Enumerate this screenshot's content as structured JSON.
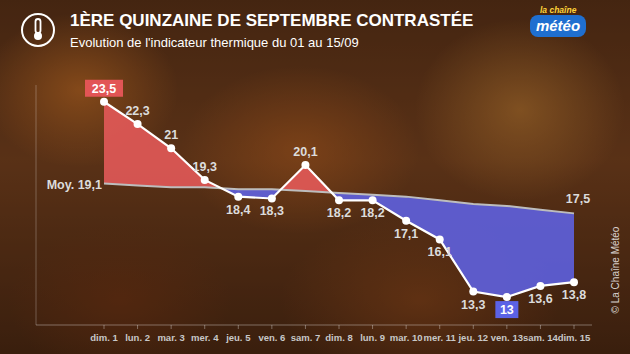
{
  "chart_data": {
    "type": "line",
    "title": "1ÈRE QUINZAINE DE SEPTEMBRE CONTRASTÉE",
    "subtitle": "Evolution de l'indicateur thermique du 01 au 15/09",
    "logo": [
      "la chaîne",
      "météo"
    ],
    "credit": "© La Chaîne Météo",
    "categories": [
      "dim. 1",
      "lun. 2",
      "mar. 3",
      "mer. 4",
      "jeu. 5",
      "ven. 6",
      "sam. 7",
      "dim. 8",
      "lun. 9",
      "mar. 10",
      "mer. 11",
      "jeu. 12",
      "ven. 13",
      "sam. 14",
      "dim. 15"
    ],
    "series": [
      {
        "color": "#ffffff",
        "marker": "circle",
        "values": [
          23.5,
          22.3,
          21,
          19.3,
          18.4,
          18.3,
          20.1,
          18.2,
          18.2,
          17.1,
          16.1,
          13.3,
          13,
          13.6,
          13.8
        ],
        "value_labels": [
          "23,5",
          "22,3",
          "21",
          "19,3",
          "18,4",
          "18,3",
          "20,1",
          "18,2",
          "18,2",
          "17,1",
          "16,1",
          "13,3",
          "13",
          "13,6",
          "13,8"
        ]
      },
      {
        "name": "Moy.",
        "color": "#bdbdbd",
        "marker": "none",
        "values": [
          19.1,
          19.0,
          18.9,
          18.9,
          18.8,
          18.8,
          18.7,
          18.6,
          18.5,
          18.4,
          18.2,
          18.0,
          17.9,
          17.7,
          17.5
        ],
        "value_labels": [
          "19,1",
          null,
          null,
          null,
          null,
          null,
          null,
          null,
          null,
          null,
          null,
          null,
          null,
          null,
          "17,5"
        ]
      }
    ],
    "ylim": [
      11.5,
      24.4
    ],
    "data_labels": true,
    "tick_labels": "x",
    "grid": false
  }
}
